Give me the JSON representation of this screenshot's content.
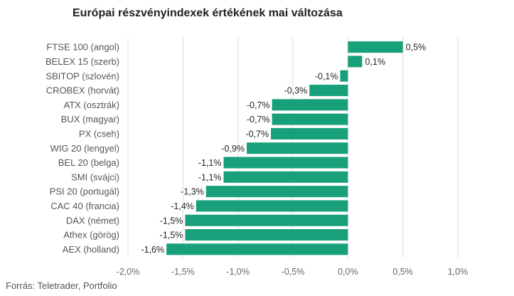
{
  "chart_data": {
    "type": "bar",
    "orientation": "horizontal",
    "title": "Európai részvényindexek értékének mai változása",
    "source": "Forrás: Teletrader, Portfolio",
    "categories": [
      "FTSE 100 (angol)",
      "BELEX 15 (szerb)",
      "SBITOP (szlovén)",
      "CROBEX (horvát)",
      "ATX (osztrák)",
      "BUX (magyar)",
      "PX (cseh)",
      "WIG 20 (lengyel)",
      "BEL 20 (belga)",
      "SMI (svájci)",
      "PSI 20 (portugál)",
      "CAC 40 (francia)",
      "DAX (német)",
      "Athex (görög)",
      "AEX (holland)"
    ],
    "values": [
      0.5,
      0.13,
      -0.07,
      -0.35,
      -0.69,
      -0.69,
      -0.7,
      -0.92,
      -1.13,
      -1.13,
      -1.29,
      -1.38,
      -1.48,
      -1.48,
      -1.65
    ],
    "value_labels": [
      "0,5%",
      "0,1%",
      "-0,1%",
      "-0,3%",
      "-0,7%",
      "-0,7%",
      "-0,7%",
      "-0,9%",
      "-1,1%",
      "-1,1%",
      "-1,3%",
      "-1,4%",
      "-1,5%",
      "-1,5%",
      "-1,6%"
    ],
    "xlim": [
      -2.0,
      1.0
    ],
    "ticks": [
      -2.0,
      -1.5,
      -1.0,
      -0.5,
      0.0,
      0.5,
      1.0
    ],
    "tick_labels": [
      "-2,0%",
      "-1,5%",
      "-1,0%",
      "-0,5%",
      "0,0%",
      "0,5%",
      "1,0%"
    ],
    "grid": true,
    "bar_color": "#17a07a",
    "grid_color": "#dddddd"
  }
}
